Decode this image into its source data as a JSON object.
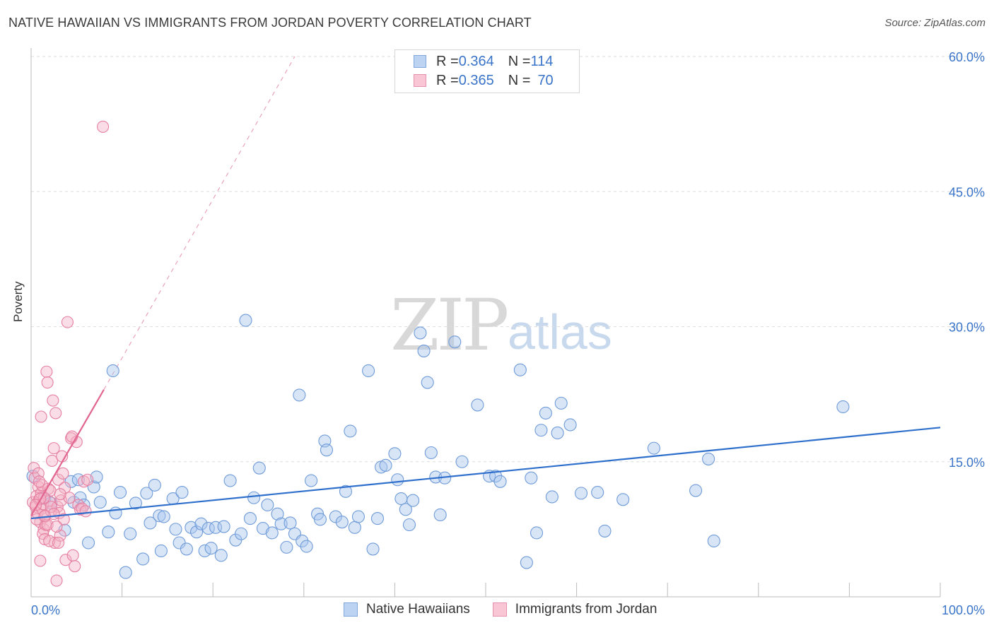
{
  "header": {
    "title": "NATIVE HAWAIIAN VS IMMIGRANTS FROM JORDAN POVERTY CORRELATION CHART",
    "source": "Source: ZipAtlas.com"
  },
  "watermark": {
    "zip": "ZIP",
    "atlas": "atlas"
  },
  "legend": {
    "rows": [
      {
        "r_label": "R = ",
        "r_value": "0.364",
        "n_label": "N = ",
        "n_value": "114"
      },
      {
        "r_label": "R = ",
        "r_value": "0.365",
        "n_label": "N = ",
        "n_value": "70"
      }
    ]
  },
  "bottom_legend": {
    "series1": "Native Hawaiians",
    "series2": "Immigrants from Jordan"
  },
  "colors": {
    "blue_fill": "#a9c6ee",
    "blue_stroke": "#6f9bd8",
    "blue_line": "#2f6fcc",
    "pink_fill": "#f5b3c8",
    "pink_stroke": "#e57fa1",
    "pink_line": "#e26590",
    "axis_text": "#3a74c9",
    "grid": "#dedede"
  },
  "chart_data": {
    "type": "scatter",
    "title": "NATIVE HAWAIIAN VS IMMIGRANTS FROM JORDAN POVERTY CORRELATION CHART",
    "xlabel": "",
    "ylabel": "Poverty",
    "xlim": [
      0,
      100
    ],
    "ylim": [
      0,
      60
    ],
    "x_tick_labels": [
      {
        "value": 0,
        "label": "0.0%"
      },
      {
        "value": 100,
        "label": "100.0%"
      }
    ],
    "y_tick_labels": [
      {
        "value": 15,
        "label": "15.0%"
      },
      {
        "value": 30,
        "label": "30.0%"
      },
      {
        "value": 45,
        "label": "45.0%"
      },
      {
        "value": 60,
        "label": "60.0%"
      }
    ],
    "series": [
      {
        "name": "Native Hawaiians",
        "r": 0.364,
        "n": 114,
        "trend": {
          "x": [
            0,
            100
          ],
          "y": [
            8.7,
            18.8
          ],
          "dashed_extension": false
        },
        "points": [
          [
            0.2,
            13.4
          ],
          [
            1.5,
            10.9
          ],
          [
            2.2,
            10.4
          ],
          [
            3.7,
            7.4
          ],
          [
            4.4,
            12.8
          ],
          [
            4.7,
            10.5
          ],
          [
            5.2,
            13.0
          ],
          [
            5.4,
            11.0
          ],
          [
            5.8,
            10.2
          ],
          [
            6.3,
            6.0
          ],
          [
            6.9,
            12.2
          ],
          [
            7.2,
            13.3
          ],
          [
            7.6,
            10.5
          ],
          [
            8.5,
            7.2
          ],
          [
            9.0,
            25.1
          ],
          [
            9.3,
            9.3
          ],
          [
            9.8,
            11.6
          ],
          [
            10.4,
            2.7
          ],
          [
            10.9,
            7.0
          ],
          [
            11.5,
            10.4
          ],
          [
            12.3,
            4.2
          ],
          [
            12.7,
            11.5
          ],
          [
            13.1,
            8.2
          ],
          [
            13.6,
            12.4
          ],
          [
            14.1,
            9.0
          ],
          [
            14.3,
            5.1
          ],
          [
            14.6,
            8.9
          ],
          [
            15.6,
            10.9
          ],
          [
            15.9,
            7.5
          ],
          [
            16.3,
            6.0
          ],
          [
            16.6,
            11.6
          ],
          [
            17.1,
            5.3
          ],
          [
            17.6,
            7.7
          ],
          [
            18.2,
            7.2
          ],
          [
            18.7,
            8.1
          ],
          [
            19.1,
            5.1
          ],
          [
            19.5,
            7.6
          ],
          [
            19.8,
            5.4
          ],
          [
            20.3,
            7.7
          ],
          [
            20.9,
            4.6
          ],
          [
            21.2,
            7.8
          ],
          [
            21.9,
            12.9
          ],
          [
            22.5,
            6.3
          ],
          [
            23.1,
            7.0
          ],
          [
            23.6,
            30.7
          ],
          [
            24.1,
            8.7
          ],
          [
            24.5,
            11.0
          ],
          [
            25.1,
            14.3
          ],
          [
            25.5,
            7.6
          ],
          [
            26.0,
            10.2
          ],
          [
            26.5,
            7.1
          ],
          [
            27.1,
            9.2
          ],
          [
            27.5,
            8.1
          ],
          [
            28.1,
            5.5
          ],
          [
            28.5,
            8.2
          ],
          [
            29.0,
            7.0
          ],
          [
            29.5,
            22.4
          ],
          [
            29.8,
            6.2
          ],
          [
            30.3,
            5.6
          ],
          [
            30.8,
            12.9
          ],
          [
            31.5,
            9.2
          ],
          [
            31.8,
            8.6
          ],
          [
            32.3,
            17.3
          ],
          [
            32.5,
            16.3
          ],
          [
            33.5,
            8.9
          ],
          [
            34.2,
            8.3
          ],
          [
            34.6,
            11.7
          ],
          [
            35.1,
            18.4
          ],
          [
            35.6,
            7.7
          ],
          [
            36.0,
            8.9
          ],
          [
            37.1,
            25.1
          ],
          [
            37.6,
            5.3
          ],
          [
            38.1,
            8.7
          ],
          [
            38.5,
            14.4
          ],
          [
            39.0,
            14.6
          ],
          [
            40.0,
            15.9
          ],
          [
            40.3,
            13.0
          ],
          [
            40.7,
            10.9
          ],
          [
            41.2,
            9.7
          ],
          [
            41.6,
            8.0
          ],
          [
            42.0,
            10.7
          ],
          [
            42.8,
            29.3
          ],
          [
            43.2,
            27.3
          ],
          [
            43.6,
            23.8
          ],
          [
            44.0,
            16.0
          ],
          [
            44.5,
            13.3
          ],
          [
            45.0,
            9.1
          ],
          [
            45.5,
            13.2
          ],
          [
            46.6,
            28.3
          ],
          [
            47.4,
            15.0
          ],
          [
            49.1,
            21.3
          ],
          [
            50.4,
            13.4
          ],
          [
            51.1,
            13.4
          ],
          [
            51.6,
            12.8
          ],
          [
            53.8,
            25.2
          ],
          [
            54.5,
            3.8
          ],
          [
            55.0,
            13.2
          ],
          [
            55.6,
            7.1
          ],
          [
            56.1,
            18.5
          ],
          [
            56.6,
            20.4
          ],
          [
            57.3,
            11.1
          ],
          [
            57.9,
            18.2
          ],
          [
            58.3,
            21.5
          ],
          [
            59.3,
            19.1
          ],
          [
            60.5,
            11.5
          ],
          [
            62.3,
            11.6
          ],
          [
            63.1,
            7.3
          ],
          [
            65.1,
            10.8
          ],
          [
            68.5,
            16.5
          ],
          [
            73.1,
            11.8
          ],
          [
            74.5,
            15.3
          ],
          [
            75.1,
            6.2
          ],
          [
            89.3,
            21.1
          ]
        ]
      },
      {
        "name": "Immigrants from Jordan",
        "r": 0.365,
        "n": 70,
        "trend": {
          "x": [
            0,
            8.0
          ],
          "y": [
            9.0,
            23.0
          ],
          "dashed_extension": {
            "x": [
              8.0,
              29.0
            ],
            "y": [
              23.0,
              60.0
            ]
          }
        },
        "points": [
          [
            0.2,
            10.5
          ],
          [
            0.3,
            14.3
          ],
          [
            0.4,
            13.2
          ],
          [
            0.5,
            10.0
          ],
          [
            0.6,
            11.2
          ],
          [
            0.7,
            9.3
          ],
          [
            0.8,
            12.2
          ],
          [
            0.9,
            10.8
          ],
          [
            1.0,
            8.3
          ],
          [
            1.1,
            11.5
          ],
          [
            1.2,
            9.8
          ],
          [
            1.3,
            10.3
          ],
          [
            1.4,
            7.5
          ],
          [
            1.5,
            8.9
          ],
          [
            1.0,
            4.0
          ],
          [
            1.3,
            7.0
          ],
          [
            1.5,
            6.4
          ],
          [
            1.6,
            8.0
          ],
          [
            1.7,
            25.0
          ],
          [
            1.8,
            23.8
          ],
          [
            1.9,
            12.0
          ],
          [
            2.0,
            10.6
          ],
          [
            2.1,
            11.8
          ],
          [
            2.2,
            9.5
          ],
          [
            2.3,
            15.1
          ],
          [
            2.4,
            21.8
          ],
          [
            2.5,
            16.5
          ],
          [
            2.6,
            6.0
          ],
          [
            2.7,
            20.4
          ],
          [
            2.8,
            1.8
          ],
          [
            2.9,
            10.0
          ],
          [
            3.0,
            13.0
          ],
          [
            3.1,
            9.3
          ],
          [
            3.2,
            6.8
          ],
          [
            3.3,
            10.7
          ],
          [
            3.4,
            15.6
          ],
          [
            3.5,
            13.7
          ],
          [
            3.6,
            8.6
          ],
          [
            3.7,
            12.1
          ],
          [
            3.8,
            4.1
          ],
          [
            4.0,
            30.5
          ],
          [
            4.2,
            11.0
          ],
          [
            4.4,
            17.6
          ],
          [
            4.6,
            4.6
          ],
          [
            4.8,
            3.4
          ],
          [
            5.0,
            17.2
          ],
          [
            5.2,
            10.2
          ],
          [
            5.4,
            9.7
          ],
          [
            5.6,
            9.8
          ],
          [
            5.8,
            12.8
          ],
          [
            6.0,
            9.5
          ],
          [
            1.1,
            20.0
          ],
          [
            0.8,
            13.7
          ],
          [
            1.2,
            12.4
          ],
          [
            1.4,
            11.0
          ],
          [
            0.6,
            8.6
          ],
          [
            2.2,
            10.0
          ],
          [
            1.8,
            8.0
          ],
          [
            1.0,
            10.9
          ],
          [
            2.5,
            9.2
          ],
          [
            3.2,
            11.4
          ],
          [
            0.9,
            12.8
          ],
          [
            1.5,
            9.0
          ],
          [
            0.5,
            10.2
          ],
          [
            2.0,
            6.2
          ],
          [
            3.0,
            6.0
          ],
          [
            4.5,
            17.8
          ],
          [
            2.8,
            7.8
          ],
          [
            7.9,
            52.2
          ],
          [
            6.2,
            13.0
          ]
        ]
      }
    ]
  }
}
